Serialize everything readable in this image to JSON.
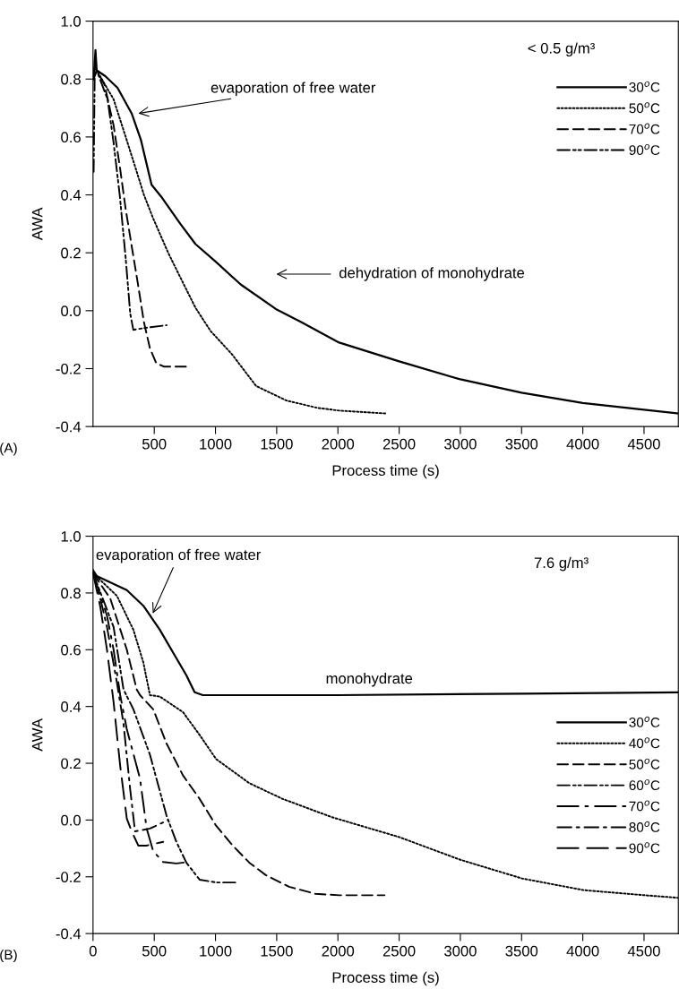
{
  "chart_data": [
    {
      "type": "line",
      "xlabel": "Process time (s)",
      "ylabel": "AWA",
      "xlim": [
        0,
        4780
      ],
      "ylim": [
        -0.4,
        1.0
      ],
      "xticks": [
        500,
        1000,
        1500,
        2000,
        2500,
        3000,
        3500,
        4000,
        4500
      ],
      "yticks": [
        {
          "value": -0.4,
          "label": "-0.4"
        },
        {
          "value": -0.2,
          "label": "-0.2"
        },
        {
          "value": 0.0,
          "label": "0.0"
        },
        {
          "value": 0.2,
          "label": "0.2"
        },
        {
          "value": 0.4,
          "label": "0.4"
        },
        {
          "value": 0.6,
          "label": "0.6"
        },
        {
          "value": 0.8,
          "label": "0.8"
        },
        {
          "value": 1.0,
          "label": "1.0"
        }
      ],
      "grid": false,
      "legend": "top right",
      "marker": "none",
      "series": [
        {
          "name": "30$^{o}$C",
          "color": "#000000",
          "line_style": "solid",
          "x": [
            5,
            20,
            30,
            100,
            200,
            317,
            391,
            478,
            564,
            713,
            837,
            1000,
            1208,
            1493,
            1703,
            2010,
            2500,
            3000,
            3500,
            4000,
            4500,
            4780
          ],
          "values": [
            0.8,
            0.9,
            0.83,
            0.81,
            0.77,
            0.68,
            0.59,
            0.435,
            0.39,
            0.3,
            0.23,
            0.17,
            0.09,
            0.006,
            -0.04,
            -0.11,
            -0.175,
            -0.237,
            -0.283,
            -0.319,
            -0.342,
            -0.355
          ]
        },
        {
          "name": "50$^{o}$C",
          "color": "#000000",
          "line_style": "dotted",
          "x": [
            5,
            30,
            168,
            267,
            342,
            416,
            490,
            614,
            713,
            837,
            960,
            1134,
            1332,
            1579,
            1827,
            2010,
            2400
          ],
          "values": [
            0.8,
            0.83,
            0.73,
            0.6,
            0.5,
            0.4,
            0.32,
            0.2,
            0.115,
            0.01,
            -0.07,
            -0.15,
            -0.26,
            -0.31,
            -0.335,
            -0.345,
            -0.355
          ]
        },
        {
          "name": "70$^{o}$C",
          "color": "#000000",
          "line_style": "dashed",
          "x": [
            5,
            30,
            94,
            168,
            218,
            267,
            317,
            366,
            416,
            465,
            515,
            577,
            775
          ],
          "values": [
            0.8,
            0.83,
            0.78,
            0.64,
            0.5,
            0.35,
            0.22,
            0.094,
            -0.04,
            -0.13,
            -0.18,
            -0.193,
            -0.193
          ]
        },
        {
          "name": "90$^{o}$C",
          "color": "#000000",
          "line_style": "dashdotdot",
          "x": [
            5,
            15,
            30,
            119,
            168,
            218,
            267,
            304,
            329,
            416,
            601
          ],
          "values": [
            0.48,
            0.87,
            0.83,
            0.73,
            0.58,
            0.4,
            0.18,
            -0.01,
            -0.066,
            -0.06,
            -0.05
          ]
        }
      ],
      "annotations": [
        {
          "text": "evaporation of free water",
          "x": 350,
          "y": 0.68
        },
        "dehydration of monohydrate",
        "< 0.5 g/m³",
        "(A)"
      ]
    },
    {
      "type": "line",
      "xlabel": "Process time (s)",
      "ylabel": "AWA",
      "xlim": [
        0,
        4780
      ],
      "ylim": [
        -0.4,
        1.0
      ],
      "xticks": [
        0,
        500,
        1000,
        1500,
        2000,
        2500,
        3000,
        3500,
        4000,
        4500
      ],
      "yticks": [
        {
          "value": -0.4,
          "label": "-0.4"
        },
        {
          "value": -0.2,
          "label": "-0.2"
        },
        {
          "value": 0.0,
          "label": "0.0"
        },
        {
          "value": 0.2,
          "label": "0.2"
        },
        {
          "value": 0.4,
          "label": "0.4"
        },
        {
          "value": 0.6,
          "label": "0.6"
        },
        {
          "value": 0.8,
          "label": "0.8"
        },
        {
          "value": 1.0,
          "label": "1.0"
        }
      ],
      "grid": false,
      "legend": "right",
      "marker": "none",
      "series": [
        {
          "name": "30$^{o}$C",
          "color": "#000000",
          "line_style": "solid",
          "x": [
            0,
            30,
            276,
            411,
            546,
            654,
            762,
            830,
            897,
            1140,
            2000,
            3500,
            4780
          ],
          "values": [
            0.88,
            0.86,
            0.81,
            0.755,
            0.67,
            0.59,
            0.51,
            0.45,
            0.44,
            0.44,
            0.44,
            0.445,
            0.45
          ]
        },
        {
          "name": "40$^{o}$C",
          "color": "#000000",
          "line_style": "dotted",
          "x": [
            0,
            195,
            330,
            411,
            465,
            546,
            735,
            870,
            1005,
            1276,
            1546,
            1951,
            2500,
            3000,
            3505,
            4008,
            4508,
            4780
          ],
          "values": [
            0.87,
            0.79,
            0.67,
            0.555,
            0.44,
            0.435,
            0.38,
            0.3,
            0.215,
            0.13,
            0.075,
            0.01,
            -0.06,
            -0.14,
            -0.206,
            -0.247,
            -0.265,
            -0.274
          ]
        },
        {
          "name": "50$^{o}$C",
          "color": "#000000",
          "line_style": "dashed",
          "x": [
            0,
            141,
            276,
            357,
            384,
            492,
            600,
            735,
            870,
            1005,
            1141,
            1276,
            1411,
            1600,
            1816,
            2011,
            2380
          ],
          "values": [
            0.87,
            0.78,
            0.6,
            0.46,
            0.44,
            0.39,
            0.27,
            0.157,
            0.075,
            -0.02,
            -0.09,
            -0.15,
            -0.194,
            -0.235,
            -0.26,
            -0.265,
            -0.265
          ]
        },
        {
          "name": "60$^{o}$C",
          "color": "#000000",
          "line_style": "dashdotdot",
          "x": [
            0,
            168,
            249,
            330,
            465,
            600,
            681,
            762,
            870,
            1005,
            1168
          ],
          "values": [
            0.87,
            0.68,
            0.46,
            0.39,
            0.23,
            0.016,
            -0.077,
            -0.15,
            -0.21,
            -0.22,
            -0.22
          ]
        },
        {
          "name": "70$^{o}$C",
          "color": "#000000",
          "line_style": "longdashdot",
          "x": [
            0,
            114,
            168,
            222,
            276,
            384,
            438,
            492,
            573,
            681,
            776
          ],
          "values": [
            0.87,
            0.72,
            0.6,
            0.44,
            0.32,
            0.145,
            -0.03,
            -0.11,
            -0.148,
            -0.153,
            -0.148
          ]
        },
        {
          "name": "80$^{o}$C",
          "color": "#000000",
          "line_style": "dashdot",
          "x": [
            0,
            60,
            114,
            195,
            249,
            303,
            343,
            465,
            614
          ],
          "values": [
            0.87,
            0.78,
            0.68,
            0.485,
            0.34,
            0.11,
            -0.04,
            -0.03,
            0.0
          ]
        },
        {
          "name": "90$^{o}$C",
          "color": "#000000",
          "line_style": "longdash",
          "x": [
            0,
            60,
            114,
            168,
            222,
            276,
            316,
            370,
            438,
            573
          ],
          "values": [
            0.87,
            0.75,
            0.6,
            0.415,
            0.19,
            0.005,
            -0.04,
            -0.09,
            -0.09,
            -0.077
          ]
        }
      ],
      "annotations": [
        {
          "text": "evaporation of free water",
          "x": 480,
          "y": 0.72
        },
        {
          "text": "monohydrate",
          "x": 1900,
          "y": 0.44
        },
        "7.6 g/m³",
        "(B)"
      ]
    }
  ]
}
